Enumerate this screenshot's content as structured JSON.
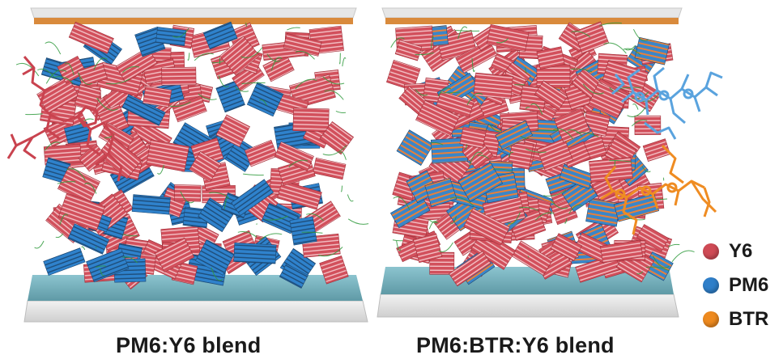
{
  "captions": {
    "left": "PM6:Y6 blend",
    "right": "PM6:BTR:Y6 blend"
  },
  "legend": [
    {
      "label": "Y6",
      "color": "#cf4a55"
    },
    {
      "label": "PM6",
      "color": "#2f7fc9"
    },
    {
      "label": "BTR",
      "color": "#ee8a1f"
    }
  ],
  "colors": {
    "y6": "#cf4a55",
    "pm6": "#2f7fc9",
    "btr": "#ee8a1f",
    "chain": "#2f9a3c",
    "substrate": "#79b7c4",
    "top_electrode": "#d98a3c",
    "glass": "#d9d9d9"
  }
}
